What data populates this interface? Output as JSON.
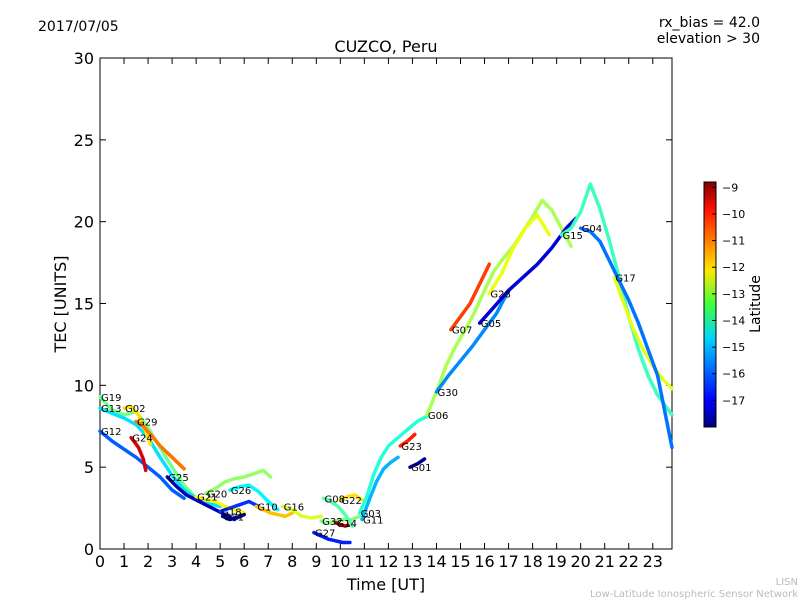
{
  "header": {
    "date": "2017/07/05",
    "rx_bias": "rx_bias = 42.0",
    "elevation": "elevation > 30"
  },
  "footer": {
    "line1": "LISN",
    "line2": "Low-Latitude Ionospheric Sensor Network"
  },
  "colorbar": {
    "label": "Latitude",
    "range": [
      -18,
      -8.8
    ],
    "ticks": [
      "−9",
      "−10",
      "−11",
      "−12",
      "−13",
      "−14",
      "−15",
      "−16",
      "−17"
    ],
    "colormap": "jet"
  },
  "chart_data": {
    "type": "line",
    "title": "CUZCO, Peru",
    "xlabel": "Time [UT]",
    "ylabel": "TEC [UNITS]",
    "xlim": [
      0,
      23.8
    ],
    "ylim": [
      0,
      30
    ],
    "xticks": [
      "0",
      "1",
      "2",
      "3",
      "4",
      "5",
      "6",
      "7",
      "8",
      "9",
      "10",
      "11",
      "12",
      "13",
      "14",
      "15",
      "16",
      "17",
      "18",
      "19",
      "20",
      "21",
      "22",
      "23"
    ],
    "yticks": [
      "0",
      "5",
      "10",
      "15",
      "20",
      "25",
      "30"
    ],
    "grid": false,
    "series": [
      {
        "name": "G19",
        "lat": -13.5,
        "x": [
          0,
          0.5,
          1,
          1.5,
          2,
          2.5,
          3,
          3.5,
          4
        ],
        "y": [
          9.3,
          8.5,
          8.2,
          8.4,
          7.4,
          6.2,
          5.0,
          3.9,
          3.1
        ]
      },
      {
        "name": "G13",
        "lat": -14.8,
        "x": [
          0,
          0.5,
          1,
          1.5,
          2,
          2.5,
          3,
          3.5,
          4,
          4.5,
          5
        ],
        "y": [
          8.6,
          8.3,
          8.0,
          7.6,
          6.8,
          5.6,
          4.5,
          3.6,
          3.1,
          2.8,
          2.6
        ]
      },
      {
        "name": "G12",
        "lat": -16.0,
        "x": [
          0,
          0.5,
          1,
          1.5,
          2,
          2.5,
          3,
          3.5
        ],
        "y": [
          7.2,
          6.6,
          6.1,
          5.6,
          5.0,
          4.4,
          3.6,
          3.1
        ]
      },
      {
        "name": "G02",
        "lat": -12.0,
        "x": [
          1,
          1.3,
          1.6,
          1.9,
          2.1
        ],
        "y": [
          8.6,
          8.7,
          8.2,
          7.2,
          6.4
        ]
      },
      {
        "name": "G29",
        "lat": -11.0,
        "x": [
          1.5,
          1.8,
          2.1,
          2.5,
          3,
          3.5
        ],
        "y": [
          7.8,
          7.5,
          7.0,
          6.3,
          5.6,
          4.9
        ]
      },
      {
        "name": "G24",
        "lat": -9.6,
        "x": [
          1.3,
          1.6,
          1.8,
          1.9
        ],
        "y": [
          6.8,
          6.2,
          5.5,
          4.8
        ]
      },
      {
        "name": "G25",
        "lat": -17.5,
        "x": [
          2.8,
          3.2,
          3.6,
          4,
          4.4,
          4.8,
          5.2,
          5.6
        ],
        "y": [
          4.4,
          3.8,
          3.3,
          3.0,
          2.7,
          2.4,
          2.1,
          1.8
        ]
      },
      {
        "name": "G21",
        "lat": -12.2,
        "x": [
          4.0,
          4.4,
          4.8,
          5.2,
          5.6,
          6.0
        ],
        "y": [
          3.2,
          3.0,
          2.9,
          2.6,
          2.4,
          2.2
        ]
      },
      {
        "name": "G20",
        "lat": -13.2,
        "x": [
          4.4,
          4.8,
          5.2,
          5.6,
          6.0,
          6.4,
          6.8,
          7.1
        ],
        "y": [
          3.4,
          3.7,
          4.1,
          4.3,
          4.4,
          4.6,
          4.8,
          4.4
        ]
      },
      {
        "name": "G18",
        "lat": -16.4,
        "x": [
          5.0,
          5.4,
          5.8,
          6.2,
          6.6
        ],
        "y": [
          2.3,
          2.5,
          2.7,
          2.9,
          2.6
        ]
      },
      {
        "name": "G26",
        "lat": -14.6,
        "x": [
          5.4,
          5.8,
          6.2,
          6.6,
          7.0,
          7.4
        ],
        "y": [
          3.6,
          3.8,
          3.9,
          3.5,
          2.9,
          2.4
        ]
      },
      {
        "name": "G31",
        "lat": -17.7,
        "x": [
          5.1,
          5.4,
          5.7,
          6.0
        ],
        "y": [
          2.0,
          1.8,
          1.9,
          2.1
        ]
      },
      {
        "name": "G10",
        "lat": -11.7,
        "x": [
          6.5,
          6.8,
          7.1,
          7.4,
          7.7,
          8.0
        ],
        "y": [
          2.6,
          2.4,
          2.2,
          2.1,
          2.0,
          2.2
        ]
      },
      {
        "name": "G16",
        "lat": -12.6,
        "x": [
          7.6,
          8.0,
          8.4,
          8.8,
          9.2
        ],
        "y": [
          2.6,
          2.4,
          2.0,
          1.9,
          2.0
        ]
      },
      {
        "name": "G27",
        "lat": -16.6,
        "x": [
          8.9,
          9.2,
          9.5,
          9.8,
          10.1,
          10.4
        ],
        "y": [
          1.0,
          0.8,
          0.6,
          0.5,
          0.4,
          0.4
        ]
      },
      {
        "name": "G32",
        "lat": -13.4,
        "x": [
          9.2,
          9.5,
          9.8,
          10.1,
          10.5,
          10.8
        ],
        "y": [
          1.7,
          1.6,
          1.7,
          1.8,
          1.8,
          2.0
        ]
      },
      {
        "name": "G14",
        "lat": -9.3,
        "x": [
          9.8,
          10.0,
          10.2,
          10.4
        ],
        "y": [
          1.6,
          1.5,
          1.4,
          1.5
        ]
      },
      {
        "name": "G08",
        "lat": -13.8,
        "x": [
          9.3,
          9.6,
          9.9,
          10.2,
          10.5
        ],
        "y": [
          3.1,
          2.9,
          2.6,
          2.1,
          1.4
        ]
      },
      {
        "name": "G22",
        "lat": -12.0,
        "x": [
          10.0,
          10.3,
          10.6,
          10.9
        ],
        "y": [
          3.0,
          3.2,
          3.3,
          3.0
        ]
      },
      {
        "name": "G03",
        "lat": -14.2,
        "x": [
          10.8,
          11.1,
          11.4,
          11.7,
          12.0,
          12.4,
          12.8,
          13.2,
          13.6
        ],
        "y": [
          2.2,
          3.2,
          4.6,
          5.6,
          6.3,
          6.8,
          7.3,
          7.8,
          8.1
        ]
      },
      {
        "name": "G11",
        "lat": -15.2,
        "x": [
          10.9,
          11.2,
          11.5,
          11.8,
          12.1,
          12.4
        ],
        "y": [
          1.8,
          3.0,
          4.1,
          4.9,
          5.3,
          5.6
        ]
      },
      {
        "name": "G23",
        "lat": -10.2,
        "x": [
          12.5,
          12.8,
          13.1
        ],
        "y": [
          6.3,
          6.6,
          7.0
        ]
      },
      {
        "name": "G01",
        "lat": -17.8,
        "x": [
          12.9,
          13.2,
          13.5
        ],
        "y": [
          5.0,
          5.2,
          5.5
        ]
      },
      {
        "name": "G06",
        "lat": -13.0,
        "x": [
          13.6,
          14.0,
          14.4,
          14.8,
          15.2,
          15.6,
          16.0,
          16.4,
          16.8,
          17.2,
          17.6,
          18.0,
          18.4,
          18.8,
          19.2,
          19.6
        ],
        "y": [
          8.2,
          9.6,
          11.2,
          12.4,
          13.4,
          14.5,
          15.8,
          17.0,
          17.8,
          18.5,
          19.4,
          20.3,
          21.3,
          20.7,
          19.6,
          18.5
        ]
      },
      {
        "name": "G07",
        "lat": -10.5,
        "x": [
          14.6,
          15.0,
          15.4,
          15.8,
          16.2
        ],
        "y": [
          13.4,
          14.2,
          15.0,
          16.2,
          17.4
        ]
      },
      {
        "name": "G30",
        "lat": -15.6,
        "x": [
          14.0,
          14.5,
          15.0,
          15.5,
          16.0,
          16.5,
          17.0
        ],
        "y": [
          9.6,
          10.6,
          11.5,
          12.4,
          13.4,
          14.4,
          15.8
        ]
      },
      {
        "name": "G28",
        "lat": -12.4,
        "x": [
          16.2,
          16.7,
          17.2,
          17.7,
          18.2,
          18.7
        ],
        "y": [
          15.6,
          16.8,
          18.4,
          19.6,
          20.4,
          19.2
        ]
      },
      {
        "name": "G05",
        "lat": -17.2,
        "x": [
          15.8,
          16.4,
          17.0,
          17.6,
          18.2,
          18.8,
          19.4,
          19.8
        ],
        "y": [
          13.8,
          14.8,
          15.8,
          16.6,
          17.4,
          18.4,
          19.6,
          20.2
        ]
      },
      {
        "name": "G15",
        "lat": -14.0,
        "x": [
          19.2,
          19.6,
          20.0,
          20.4,
          20.8,
          21.2,
          21.6,
          22.0,
          22.4,
          22.8,
          23.2,
          23.8
        ],
        "y": [
          19.2,
          19.6,
          20.6,
          22.3,
          20.8,
          18.8,
          16.6,
          14.2,
          12.2,
          10.6,
          9.4,
          8.2
        ]
      },
      {
        "name": "G17",
        "lat": -12.5,
        "x": [
          21.4,
          21.8,
          22.2,
          22.6,
          23.0,
          23.4,
          23.8
        ],
        "y": [
          16.6,
          15.0,
          13.4,
          12.2,
          11.2,
          10.4,
          9.8
        ]
      },
      {
        "name": "G04",
        "lat": -15.8,
        "x": [
          20.0,
          20.4,
          20.8,
          21.2,
          21.6,
          22.0,
          22.4,
          22.8,
          23.2,
          23.8
        ],
        "y": [
          19.6,
          19.4,
          18.8,
          17.6,
          16.4,
          15.2,
          13.8,
          12.2,
          10.6,
          6.2
        ]
      }
    ]
  }
}
